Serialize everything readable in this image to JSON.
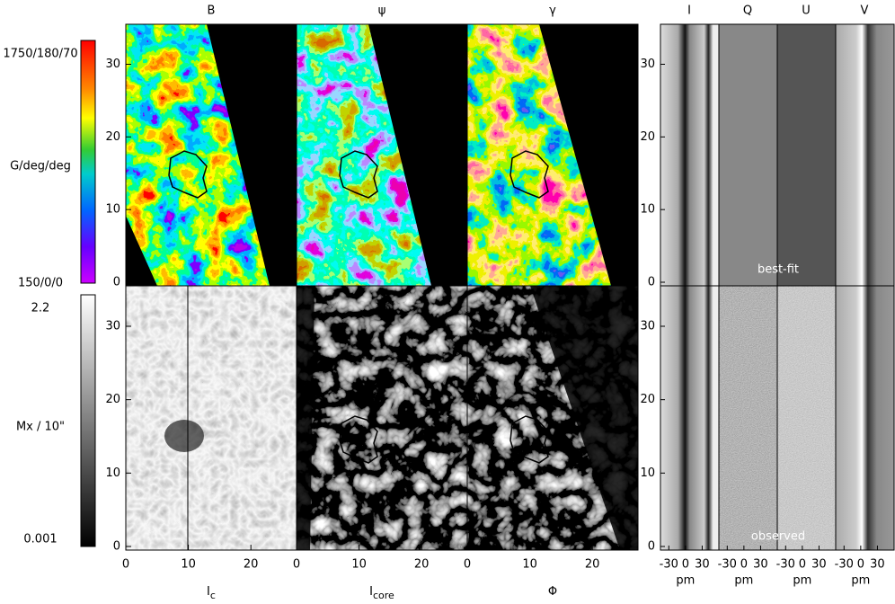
{
  "map_labels_top": [
    "B",
    "ψ",
    "γ"
  ],
  "map_labels_bottom": [
    {
      "main": "I",
      "sub": "c"
    },
    {
      "main": "I",
      "sub": "core"
    },
    {
      "main": "Φ",
      "sub": ""
    }
  ],
  "colorbar_top": {
    "max": "1750/180/70",
    "unit": "G/deg/deg",
    "min": "150/0/0"
  },
  "colorbar_bottom": {
    "max": "2.2",
    "unit": "Mx / 10\"",
    "min": "0.001"
  },
  "map_axes": {
    "xlim": [
      0,
      27.3
    ],
    "ylim": [
      0,
      36
    ],
    "xticks": [
      0,
      10,
      20
    ],
    "yticks": [
      0,
      10,
      20,
      30
    ]
  },
  "profile_panels": [
    "I",
    "Q",
    "U",
    "V"
  ],
  "profile_axes": {
    "xlim": [
      -45,
      60
    ],
    "ylim": [
      0,
      36
    ],
    "xticks": [
      -30,
      0,
      30
    ],
    "yticks": [
      0,
      10,
      20,
      30
    ],
    "xunit": "pm"
  },
  "row_labels": [
    "best-fit",
    "observed"
  ]
}
